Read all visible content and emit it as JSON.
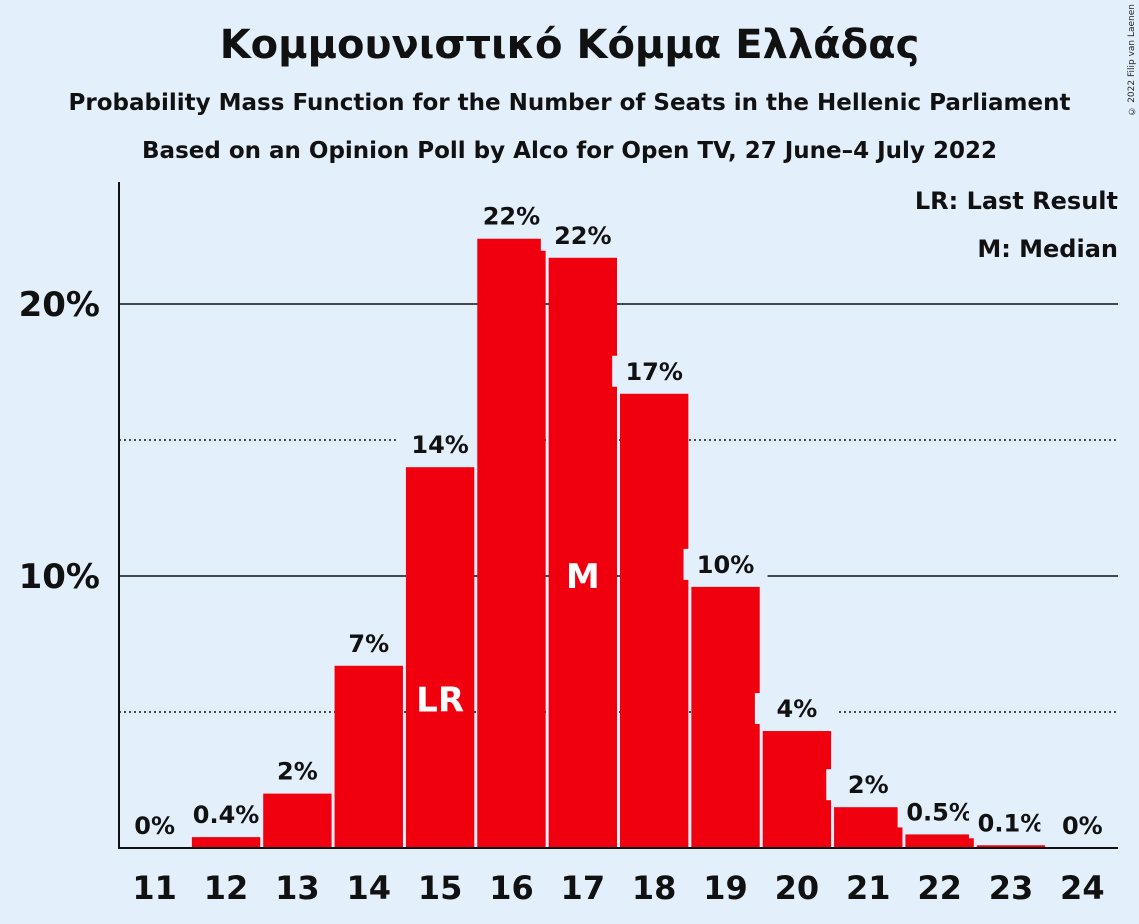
{
  "title": "Κομμουνιστικό Κόμμα Ελλάδας",
  "subtitle": "Probability Mass Function for the Number of Seats in the Hellenic Parliament",
  "subtitle2": "Based on an Opinion Poll by Alco for Open TV, 27 June–4 July 2022",
  "copyright": "© 2022 Filip van Laenen",
  "legend": {
    "last_result": "LR: Last Result",
    "median": "M: Median"
  },
  "colors": {
    "bar": "#f0000f",
    "background": "#e3f0fc"
  },
  "chart_data": {
    "type": "bar",
    "categories": [
      "11",
      "12",
      "13",
      "14",
      "15",
      "16",
      "17",
      "18",
      "19",
      "20",
      "21",
      "22",
      "23",
      "24"
    ],
    "values": [
      0,
      0.4,
      2.0,
      6.7,
      14.0,
      22.4,
      21.7,
      16.7,
      9.6,
      4.3,
      1.5,
      0.5,
      0.1,
      0
    ],
    "data_labels": [
      "0%",
      "0.4%",
      "2%",
      "7%",
      "14%",
      "22%",
      "22%",
      "17%",
      "10%",
      "4%",
      "2%",
      "0.5%",
      "0.1%",
      "0%"
    ],
    "yticks": [
      {
        "value": 10,
        "label": "10%"
      },
      {
        "value": 20,
        "label": "20%"
      }
    ],
    "minor_gridlines": [
      5,
      15
    ],
    "ylim": [
      0,
      24.5
    ],
    "markers": [
      {
        "category": "15",
        "label": "LR"
      },
      {
        "category": "17",
        "label": "M"
      }
    ],
    "legend_position": "top-right"
  }
}
